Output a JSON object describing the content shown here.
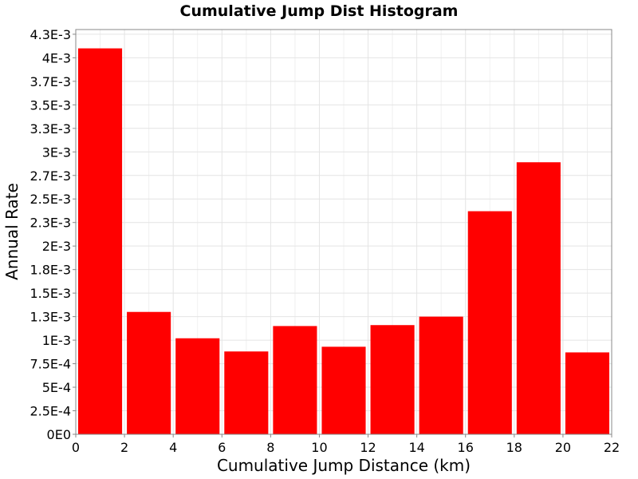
{
  "chart_data": {
    "type": "bar",
    "title": "Cumulative Jump Dist Histogram",
    "xlabel": "Cumulative Jump Distance (km)",
    "ylabel": "Annual Rate",
    "xlim": [
      0,
      22
    ],
    "ylim": [
      0,
      0.0043
    ],
    "x_ticks": [
      "0",
      "2",
      "4",
      "6",
      "8",
      "10",
      "12",
      "14",
      "16",
      "18",
      "20",
      "22"
    ],
    "x_tick_values": [
      0,
      2,
      4,
      6,
      8,
      10,
      12,
      14,
      16,
      18,
      20,
      22
    ],
    "y_ticks": [
      "0E0",
      "2.5E-4",
      "5E-4",
      "7.5E-4",
      "1E-3",
      "1.3E-3",
      "1.5E-3",
      "1.8E-3",
      "2E-3",
      "2.3E-3",
      "2.5E-3",
      "2.7E-3",
      "3E-3",
      "3.3E-3",
      "3.5E-3",
      "3.7E-3",
      "4E-3",
      "4.3E-3"
    ],
    "y_tick_values": [
      0,
      0.00025,
      0.0005,
      0.00075,
      0.001,
      0.00125,
      0.0015,
      0.00175,
      0.002,
      0.00225,
      0.0025,
      0.00275,
      0.003,
      0.00325,
      0.0035,
      0.00375,
      0.004,
      0.00425
    ],
    "bin_width": 2,
    "bins": [
      {
        "x": 1,
        "value": 0.0041
      },
      {
        "x": 3,
        "value": 0.0013
      },
      {
        "x": 5,
        "value": 0.00102
      },
      {
        "x": 7,
        "value": 0.00088
      },
      {
        "x": 9,
        "value": 0.00115
      },
      {
        "x": 11,
        "value": 0.00093
      },
      {
        "x": 13,
        "value": 0.00116
      },
      {
        "x": 15,
        "value": 0.00125
      },
      {
        "x": 17,
        "value": 0.00237
      },
      {
        "x": 19,
        "value": 0.00289
      },
      {
        "x": 21,
        "value": 0.00087
      }
    ],
    "bar_color": "#ff0000",
    "grid": true
  }
}
